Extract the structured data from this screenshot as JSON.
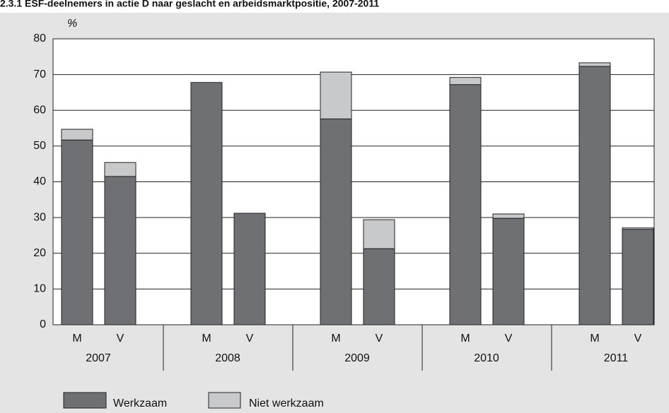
{
  "chart_data": {
    "type": "stacked_bar",
    "title": "2.3.1 ESF-deelnemers in actie D naar geslacht en arbeidsmarktpositie, 2007-2011",
    "y_label": "%",
    "categories": [
      "M",
      "V",
      "M",
      "V",
      "M",
      "V",
      "M",
      "V",
      "M",
      "V"
    ],
    "groups": [
      "2007",
      "2008",
      "2009",
      "2010",
      "2011"
    ],
    "series": [
      {
        "name": "Werkzaam",
        "color": "#6f7073",
        "values": [
          51.7,
          41.5,
          67.8,
          31.2,
          57.6,
          21.3,
          67.2,
          29.8,
          72.3,
          26.7
        ]
      },
      {
        "name": "Niet werkzaam",
        "color": "#c8c9cb",
        "values": [
          3.0,
          3.9,
          0,
          0,
          13.1,
          8.1,
          2.0,
          1.2,
          1.0,
          0.4
        ]
      }
    ],
    "ylim": [
      0,
      80
    ],
    "yticks": [
      0,
      10,
      20,
      30,
      40,
      50,
      60,
      70,
      80
    ],
    "grid": true,
    "legend": "bottom"
  }
}
